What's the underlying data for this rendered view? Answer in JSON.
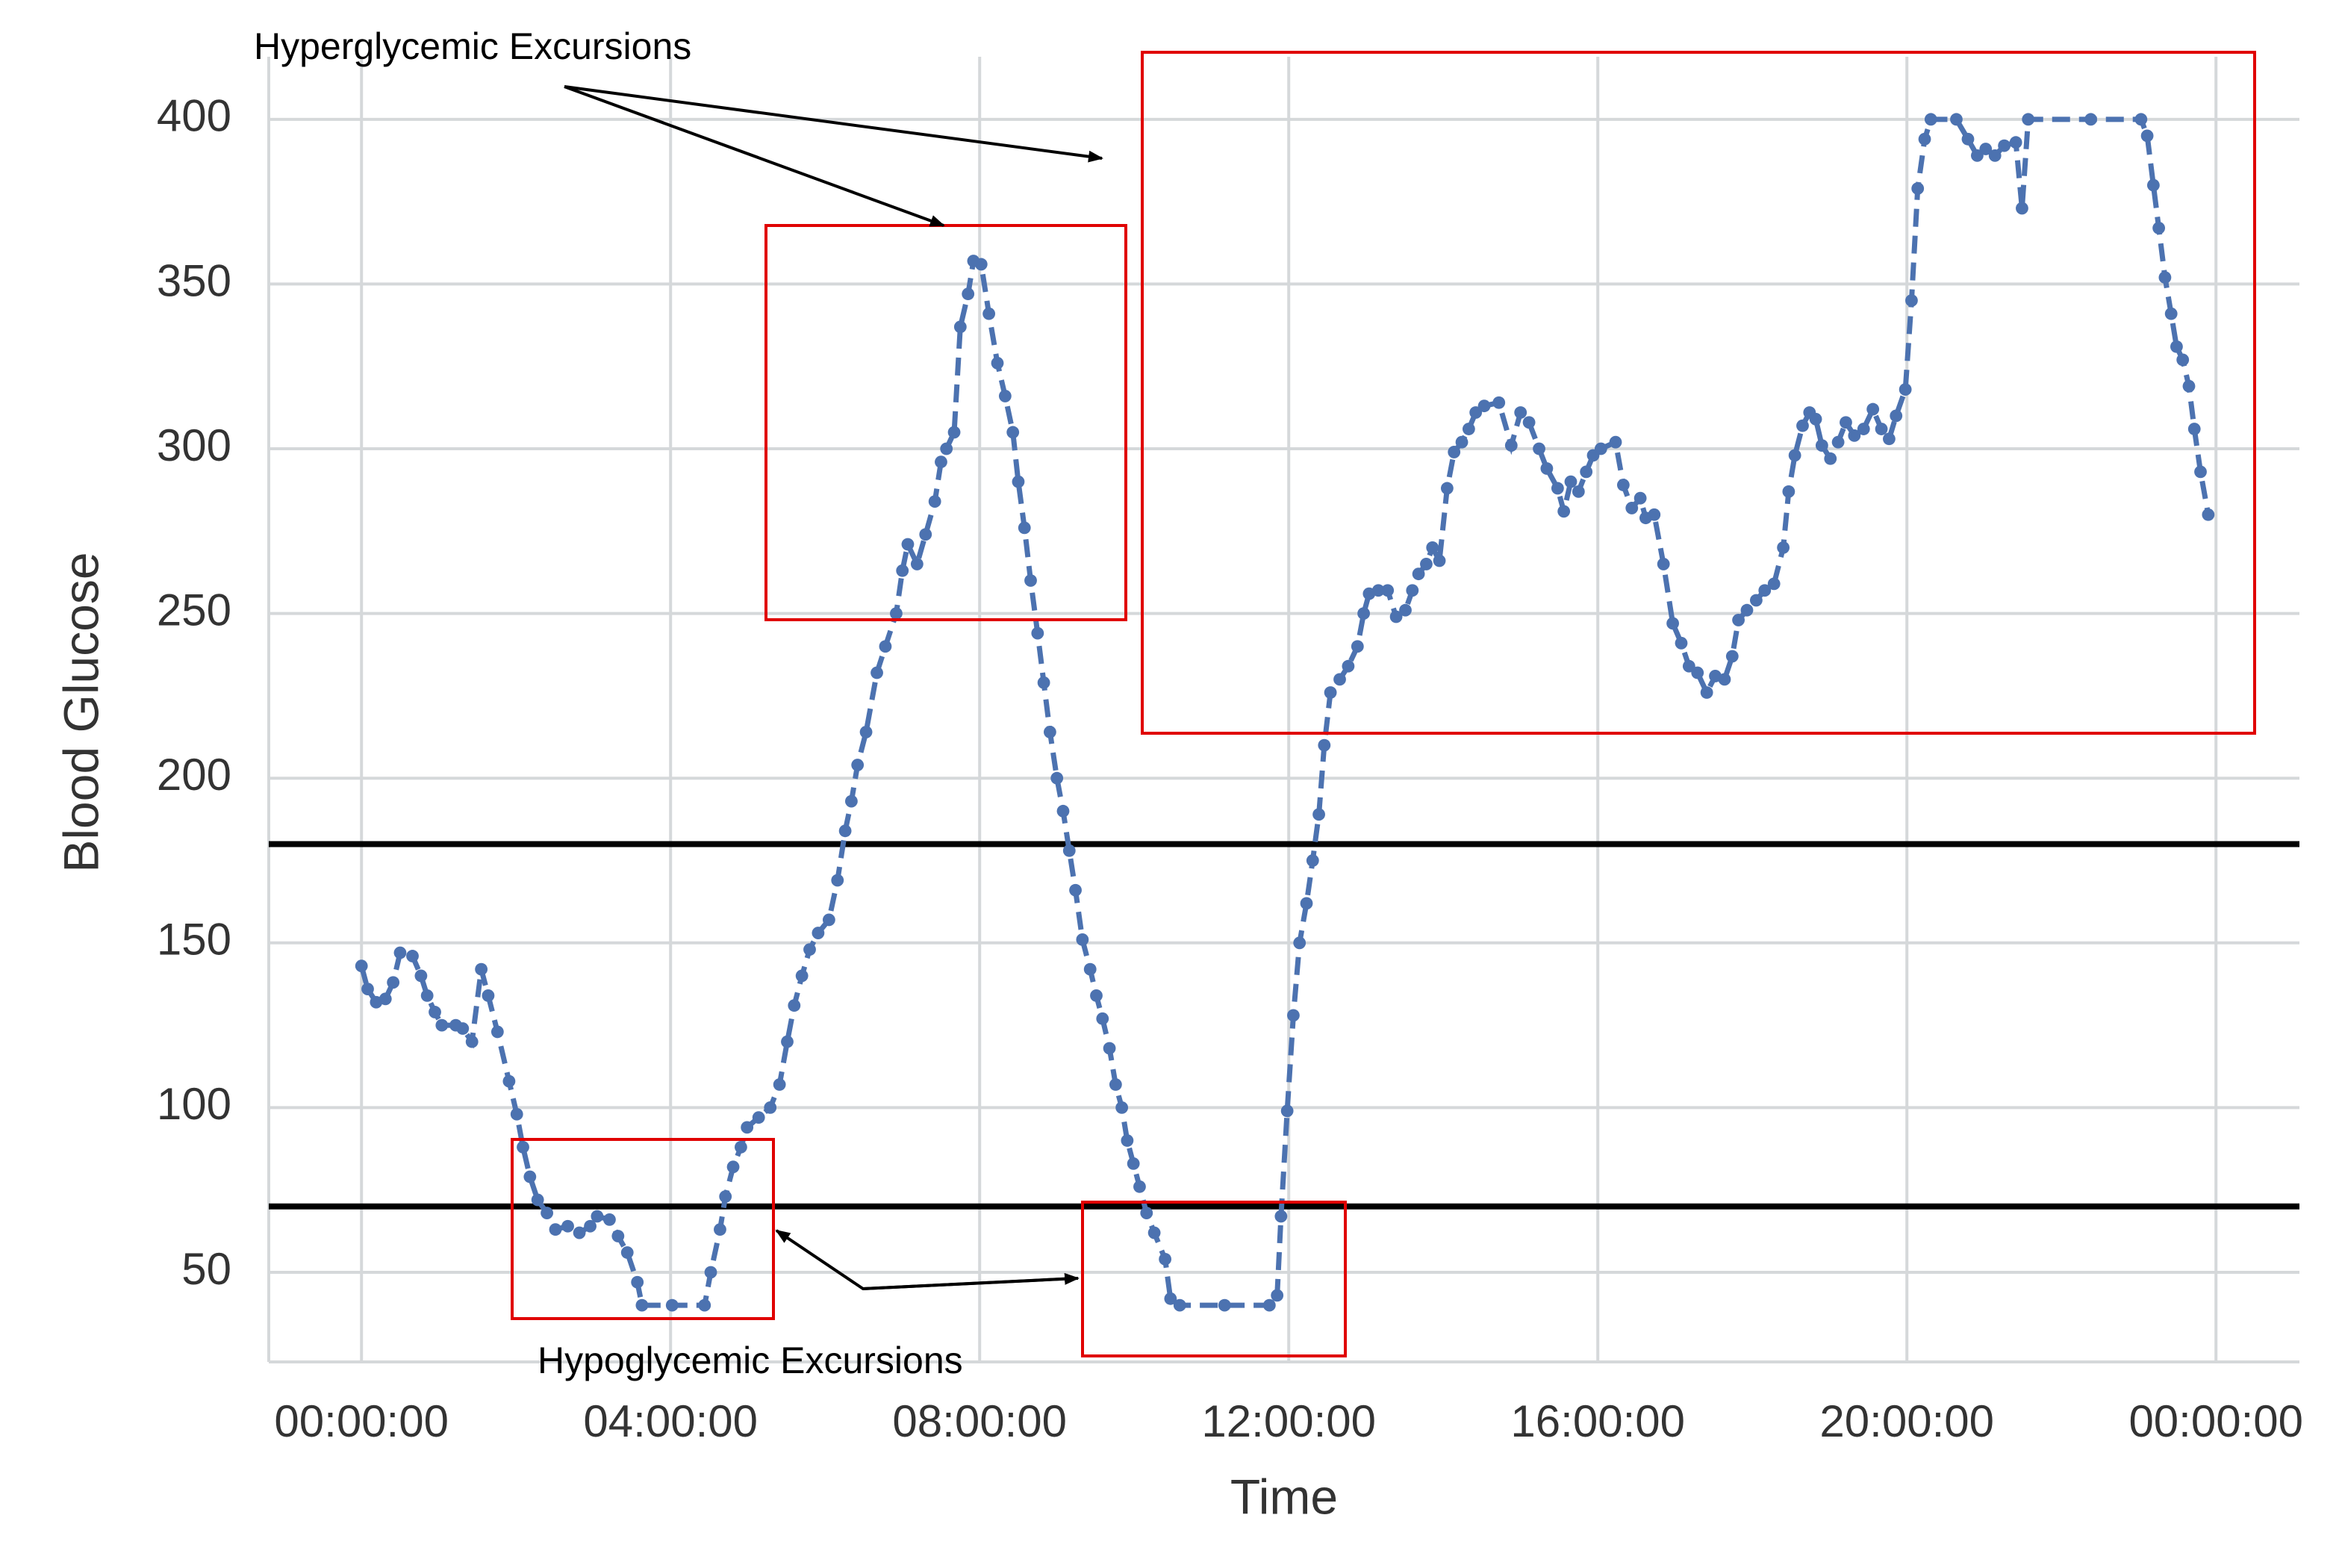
{
  "chart_data": {
    "type": "line",
    "x_label": "Time",
    "y_label": "Blood Glucose",
    "annotations": [
      "Hyperglycemic Excursions",
      "Hypoglycemic Excursions"
    ],
    "x": [
      0,
      0.08,
      0.19,
      0.31,
      0.41,
      0.5,
      0.66,
      0.77,
      0.85,
      0.95,
      1.04,
      1.22,
      1.31,
      1.43,
      1.55,
      1.64,
      1.76,
      1.91,
      2.01,
      2.09,
      2.18,
      2.28,
      2.4,
      2.51,
      2.67,
      2.82,
      2.96,
      3.05,
      3.21,
      3.32,
      3.44,
      3.57,
      3.63,
      4.02,
      4.44,
      4.52,
      4.64,
      4.71,
      4.81,
      4.91,
      4.99,
      5.14,
      5.29,
      5.41,
      5.51,
      5.6,
      5.7,
      5.8,
      5.91,
      6.05,
      6.16,
      6.26,
      6.34,
      6.42,
      6.53,
      6.67,
      6.78,
      6.92,
      7.0,
      7.07,
      7.19,
      7.3,
      7.42,
      7.5,
      7.57,
      7.67,
      7.75,
      7.85,
      7.92,
      8.02,
      8.12,
      8.23,
      8.33,
      8.43,
      8.5,
      8.58,
      8.66,
      8.75,
      8.83,
      8.91,
      9.0,
      9.08,
      9.16,
      9.24,
      9.33,
      9.43,
      9.51,
      9.59,
      9.68,
      9.76,
      9.84,
      9.91,
      9.99,
      10.07,
      10.16,
      10.26,
      10.4,
      10.47,
      10.59,
      11.17,
      11.75,
      11.85,
      11.9,
      11.98,
      12.06,
      12.14,
      12.23,
      12.31,
      12.39,
      12.46,
      12.54,
      12.66,
      12.77,
      12.89,
      12.97,
      13.04,
      13.16,
      13.28,
      13.39,
      13.51,
      13.6,
      13.68,
      13.78,
      13.86,
      13.95,
      14.05,
      14.14,
      14.24,
      14.33,
      14.42,
      14.53,
      14.72,
      14.88,
      15.0,
      15.11,
      15.24,
      15.34,
      15.48,
      15.56,
      15.65,
      15.75,
      15.85,
      15.94,
      16.04,
      16.23,
      16.33,
      16.44,
      16.55,
      16.62,
      16.73,
      16.85,
      16.97,
      17.08,
      17.18,
      17.29,
      17.41,
      17.52,
      17.64,
      17.74,
      17.82,
      17.93,
      18.05,
      18.16,
      18.28,
      18.4,
      18.47,
      18.55,
      18.65,
      18.74,
      18.82,
      18.9,
      19.01,
      19.11,
      19.21,
      19.32,
      19.44,
      19.56,
      19.67,
      19.77,
      19.86,
      19.98,
      20.06,
      20.14,
      20.23,
      20.31,
      20.64,
      20.79,
      20.91,
      21.02,
      21.14,
      21.26,
      21.41,
      21.49,
      21.57,
      22.38,
      23.03,
      23.11,
      23.19,
      23.26,
      23.34,
      23.42,
      23.49,
      23.57,
      23.65,
      23.72,
      23.8,
      23.9
    ],
    "values": [
      143,
      136,
      132,
      133,
      138,
      147,
      146,
      140,
      134,
      129,
      125,
      125,
      124,
      120,
      142,
      134,
      123,
      108,
      98,
      88,
      79,
      72,
      68,
      63,
      64,
      62,
      64,
      67,
      66,
      61,
      56,
      47,
      40,
      40,
      40,
      50,
      63,
      73,
      82,
      88,
      94,
      97,
      100,
      107,
      120,
      131,
      140,
      148,
      153,
      157,
      169,
      184,
      193,
      204,
      214,
      232,
      240,
      250,
      263,
      271,
      265,
      274,
      284,
      296,
      300,
      305,
      337,
      347,
      357,
      356,
      341,
      326,
      316,
      305,
      290,
      276,
      260,
      244,
      229,
      214,
      200,
      190,
      178,
      166,
      151,
      142,
      134,
      127,
      118,
      107,
      100,
      90,
      83,
      76,
      68,
      62,
      54,
      42,
      40,
      40,
      40,
      43,
      67,
      99,
      128,
      150,
      162,
      175,
      189,
      210,
      226,
      230,
      234,
      240,
      250,
      256,
      257,
      257,
      249,
      251,
      257,
      262,
      265,
      270,
      266,
      288,
      299,
      302,
      306,
      311,
      313,
      314,
      301,
      311,
      308,
      300,
      294,
      288,
      281,
      290,
      287,
      293,
      298,
      300,
      302,
      289,
      282,
      285,
      279,
      280,
      265,
      247,
      241,
      234,
      232,
      226,
      231,
      230,
      237,
      248,
      251,
      254,
      257,
      259,
      270,
      287,
      298,
      307,
      311,
      309,
      301,
      297,
      302,
      308,
      304,
      306,
      312,
      306,
      303,
      310,
      318,
      345,
      379,
      394,
      400,
      400,
      394,
      389,
      391,
      389,
      392,
      393,
      373,
      400,
      400,
      400,
      395,
      380,
      367,
      352,
      341,
      331,
      327,
      319,
      306,
      293,
      280
    ],
    "color": "#4c72b0",
    "hlines": [
      180,
      70
    ],
    "hline_color": "#000000",
    "xlim": [
      -1.2,
      25.08
    ],
    "xticks": [
      {
        "value": 0,
        "label": "00:00:00"
      },
      {
        "value": 4,
        "label": "04:00:00"
      },
      {
        "value": 8,
        "label": "08:00:00"
      },
      {
        "value": 12,
        "label": "12:00:00"
      },
      {
        "value": 16,
        "label": "16:00:00"
      },
      {
        "value": 20,
        "label": "20:00:00"
      },
      {
        "value": 24,
        "label": "00:00:00"
      }
    ],
    "ylim": [
      22.8,
      419
    ],
    "yticks": [
      50,
      100,
      150,
      200,
      250,
      300,
      350,
      400
    ],
    "grid": true
  }
}
